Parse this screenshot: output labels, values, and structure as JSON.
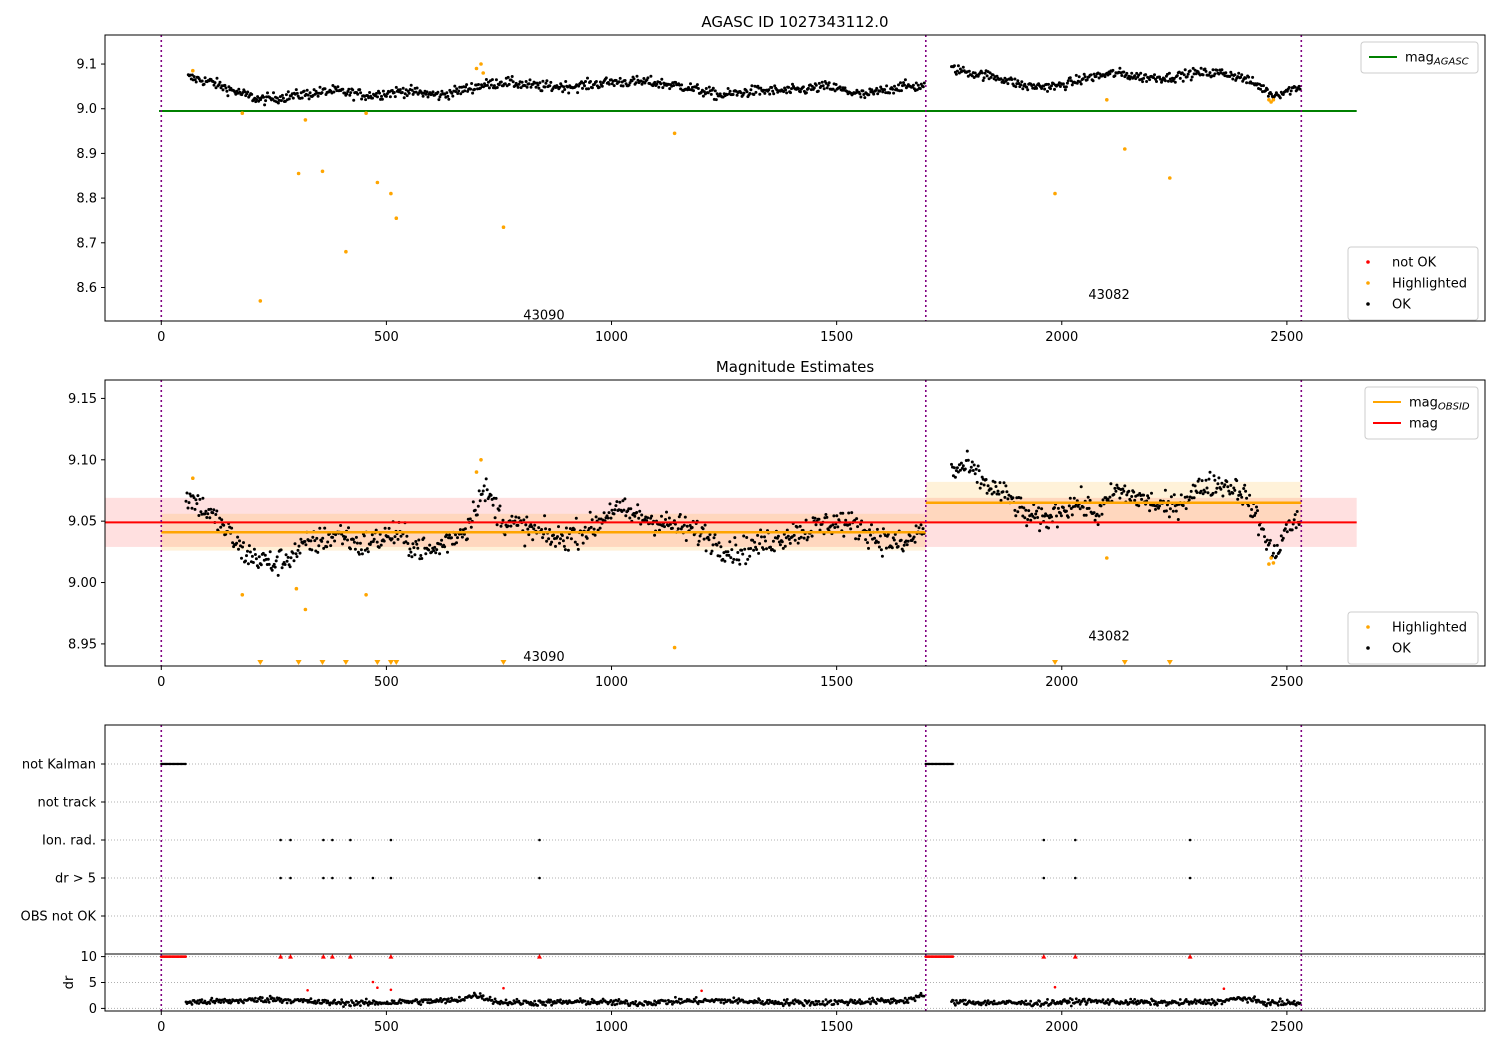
{
  "chart_data": [
    {
      "id": "top",
      "type": "scatter",
      "title": "AGASC ID 1027343112.0",
      "xlim": [
        -125,
        2940
      ],
      "ylim": [
        8.525,
        9.165
      ],
      "xticks": [
        0,
        500,
        1000,
        1500,
        2000,
        2500
      ],
      "yticks": [
        8.6,
        8.7,
        8.8,
        8.9,
        9.0,
        9.1
      ],
      "ytick_labels": [
        "8.6",
        "8.7",
        "8.8",
        "8.9",
        "9.0",
        "9.1"
      ],
      "grid": false,
      "vlines": [
        0,
        1698,
        2532
      ],
      "hlines": [
        {
          "name": "mag_AGASC",
          "y": 8.995,
          "x": [
            -5,
            2655
          ],
          "color": "#008000"
        }
      ],
      "annotations": [
        {
          "text": "43090",
          "x": 850,
          "y": 8.54
        },
        {
          "text": "43082",
          "x": 2105,
          "y": 8.585
        }
      ],
      "ok_segments": [
        {
          "x": [
            60,
            110,
            160,
            220,
            300,
            380,
            460,
            540,
            620,
            700,
            760,
            840,
            920,
            1000,
            1080,
            1160,
            1240,
            1320,
            1400,
            1480,
            1560,
            1640,
            1695
          ],
          "y": [
            9.07,
            9.06,
            9.04,
            9.02,
            9.03,
            9.04,
            9.03,
            9.04,
            9.03,
            9.05,
            9.06,
            9.05,
            9.05,
            9.06,
            9.06,
            9.05,
            9.03,
            9.04,
            9.04,
            9.05,
            9.03,
            9.05,
            9.05
          ],
          "noise": 0.012
        },
        {
          "x": [
            1755,
            1800,
            1860,
            1920,
            1990,
            2060,
            2120,
            2180,
            2240,
            2300,
            2360,
            2400,
            2440,
            2470,
            2530
          ],
          "y": [
            9.09,
            9.08,
            9.07,
            9.05,
            9.05,
            9.07,
            9.08,
            9.07,
            9.07,
            9.08,
            9.08,
            9.07,
            9.05,
            9.03,
            9.05
          ],
          "noise": 0.011
        }
      ],
      "highlighted": {
        "x": [
          70,
          180,
          220,
          305,
          320,
          358,
          410,
          455,
          480,
          510,
          522,
          700,
          710,
          715,
          760,
          1140,
          1985,
          2100,
          2140,
          2240,
          2460,
          2465,
          2470
        ],
        "y": [
          9.085,
          8.99,
          8.57,
          8.855,
          8.975,
          8.86,
          8.68,
          8.99,
          8.835,
          8.81,
          8.755,
          9.09,
          9.1,
          9.08,
          8.735,
          8.945,
          8.81,
          9.02,
          8.91,
          8.845,
          9.02,
          9.015,
          9.02
        ]
      },
      "legends": [
        {
          "position": "top-right",
          "entries": [
            {
              "label": "mag",
              "sub": "AGASC",
              "marker": "line",
              "color": "#008000"
            }
          ]
        },
        {
          "position": "lower-right",
          "entries": [
            {
              "label": "not OK",
              "marker": "dot",
              "color": "#ff0000"
            },
            {
              "label": "Highlighted",
              "marker": "dot",
              "color": "#ffa500"
            },
            {
              "label": "OK",
              "marker": "dot",
              "color": "#000000"
            }
          ]
        }
      ]
    },
    {
      "id": "mid",
      "type": "scatter",
      "title": "Magnitude Estimates",
      "xlim": [
        -125,
        2940
      ],
      "ylim": [
        8.932,
        9.165
      ],
      "xticks": [
        0,
        500,
        1000,
        1500,
        2000,
        2500
      ],
      "yticks": [
        8.95,
        9.0,
        9.05,
        9.1,
        9.15
      ],
      "ytick_labels": [
        "8.95",
        "9.00",
        "9.05",
        "9.10",
        "9.15"
      ],
      "grid": false,
      "vlines": [
        0,
        1698,
        2532
      ],
      "mag": {
        "y": 9.049,
        "band": [
          9.029,
          9.069
        ],
        "x": [
          -125,
          2655
        ],
        "color": "#ff0000"
      },
      "mag_obsid": [
        {
          "x": [
            0,
            1698
          ],
          "y": 9.041,
          "band": [
            9.026,
            9.056
          ]
        },
        {
          "x": [
            1698,
            2532
          ],
          "y": 9.065,
          "band": [
            9.048,
            9.082
          ]
        }
      ],
      "annotations": [
        {
          "text": "43090",
          "x": 850,
          "y": 8.94
        },
        {
          "text": "43082",
          "x": 2105,
          "y": 8.957
        }
      ],
      "ok_segments": [
        {
          "x": [
            55,
            80,
            110,
            150,
            180,
            210,
            250,
            280,
            320,
            360,
            400,
            440,
            480,
            520,
            560,
            600,
            640,
            680,
            700,
            720,
            760,
            800,
            840,
            880,
            920,
            960,
            1000,
            1050,
            1100,
            1150,
            1200,
            1240,
            1280,
            1320,
            1360,
            1400,
            1450,
            1500,
            1550,
            1600,
            1650,
            1695
          ],
          "y": [
            9.07,
            9.065,
            9.055,
            9.04,
            9.025,
            9.02,
            9.015,
            9.02,
            9.03,
            9.035,
            9.04,
            9.03,
            9.035,
            9.04,
            9.03,
            9.025,
            9.035,
            9.045,
            9.065,
            9.075,
            9.05,
            9.045,
            9.04,
            9.035,
            9.04,
            9.045,
            9.06,
            9.055,
            9.05,
            9.045,
            9.04,
            9.03,
            9.025,
            9.03,
            9.035,
            9.04,
            9.045,
            9.05,
            9.045,
            9.035,
            9.03,
            9.045
          ],
          "noise": 0.011
        },
        {
          "x": [
            1755,
            1790,
            1830,
            1880,
            1920,
            1960,
            2000,
            2040,
            2080,
            2120,
            2160,
            2200,
            2240,
            2280,
            2320,
            2360,
            2400,
            2430,
            2455,
            2470,
            2500,
            2530
          ],
          "y": [
            9.09,
            9.095,
            9.08,
            9.07,
            9.055,
            9.05,
            9.06,
            9.065,
            9.055,
            9.075,
            9.07,
            9.065,
            9.06,
            9.07,
            9.08,
            9.08,
            9.075,
            9.055,
            9.035,
            9.02,
            9.045,
            9.05
          ],
          "noise": 0.01
        }
      ],
      "highlighted": {
        "x": [
          70,
          180,
          300,
          320,
          455,
          700,
          710,
          1140,
          2100,
          2460,
          2465,
          2470
        ],
        "y": [
          9.085,
          8.99,
          8.995,
          8.978,
          8.99,
          9.09,
          9.1,
          8.947,
          9.02,
          9.015,
          9.02,
          9.016
        ]
      },
      "clipped_low_x": [
        220,
        305,
        358,
        410,
        480,
        510,
        522,
        760,
        1985,
        2140,
        2240
      ],
      "legends": [
        {
          "position": "top-right",
          "entries": [
            {
              "label": "mag",
              "sub": "OBSID",
              "marker": "line",
              "color": "#ffa500"
            },
            {
              "label": "mag",
              "marker": "line",
              "color": "#ff0000"
            }
          ]
        },
        {
          "position": "lower-right",
          "entries": [
            {
              "label": "Highlighted",
              "marker": "dot",
              "color": "#ffa500"
            },
            {
              "label": "OK",
              "marker": "dot",
              "color": "#000000"
            }
          ]
        }
      ]
    },
    {
      "id": "flags",
      "type": "scatter",
      "xlim": [
        -125,
        2940
      ],
      "categories": [
        "not Kalman",
        "not track",
        "Ion. rad.",
        "dr > 5",
        "OBS not OK"
      ],
      "vlines": [
        0,
        1698,
        2532
      ],
      "grid": true,
      "not_kalman_x": [
        [
          0,
          55
        ],
        [
          1698,
          1760
        ]
      ],
      "ion_rad_x": [
        265,
        287,
        360,
        380,
        420,
        510,
        840,
        1960,
        2030,
        2285
      ],
      "dr5_x": [
        265,
        287,
        360,
        380,
        420,
        470,
        510,
        840,
        1960,
        2030,
        2285
      ],
      "obs_not_ok_x": []
    },
    {
      "id": "dr",
      "type": "scatter",
      "xlim": [
        -125,
        2940
      ],
      "ylim": [
        -0.5,
        10.5
      ],
      "ylabel": "dr",
      "yticks": [
        0,
        5,
        10
      ],
      "ytick_labels": [
        "0",
        "5",
        "10"
      ],
      "xticks": [
        0,
        500,
        1000,
        1500,
        2000,
        2500
      ],
      "vlines": [
        0,
        1698,
        2532
      ],
      "grid": true,
      "red_top_x": [
        [
          0,
          55
        ],
        [
          1698,
          1760
        ]
      ],
      "red_top_single": [
        265,
        287,
        360,
        380,
        420,
        510,
        840,
        1960,
        2030,
        2285
      ],
      "red_mid": {
        "x": [
          325,
          470,
          480,
          510,
          760,
          1200,
          1985,
          2360
        ],
        "y": [
          3.5,
          5.1,
          4.0,
          3.6,
          3.9,
          3.4,
          4.1,
          3.8
        ]
      },
      "ok_segments": [
        {
          "x": [
            55,
            150,
            250,
            350,
            450,
            550,
            650,
            700,
            750,
            850,
            950,
            1050,
            1150,
            1250,
            1350,
            1450,
            1550,
            1650,
            1695
          ],
          "y": [
            1.2,
            1.4,
            1.8,
            1.2,
            1.0,
            1.3,
            1.5,
            2.6,
            1.2,
            1.1,
            1.3,
            1.0,
            1.4,
            1.5,
            1.2,
            1.1,
            1.3,
            1.5,
            2.5
          ],
          "noise": 0.6
        },
        {
          "x": [
            1755,
            1850,
            1950,
            2050,
            2150,
            2250,
            2350,
            2400,
            2450,
            2530
          ],
          "y": [
            1.2,
            1.1,
            1.0,
            1.4,
            1.2,
            1.1,
            1.3,
            2.0,
            1.1,
            1.0
          ],
          "noise": 0.55
        }
      ]
    }
  ]
}
